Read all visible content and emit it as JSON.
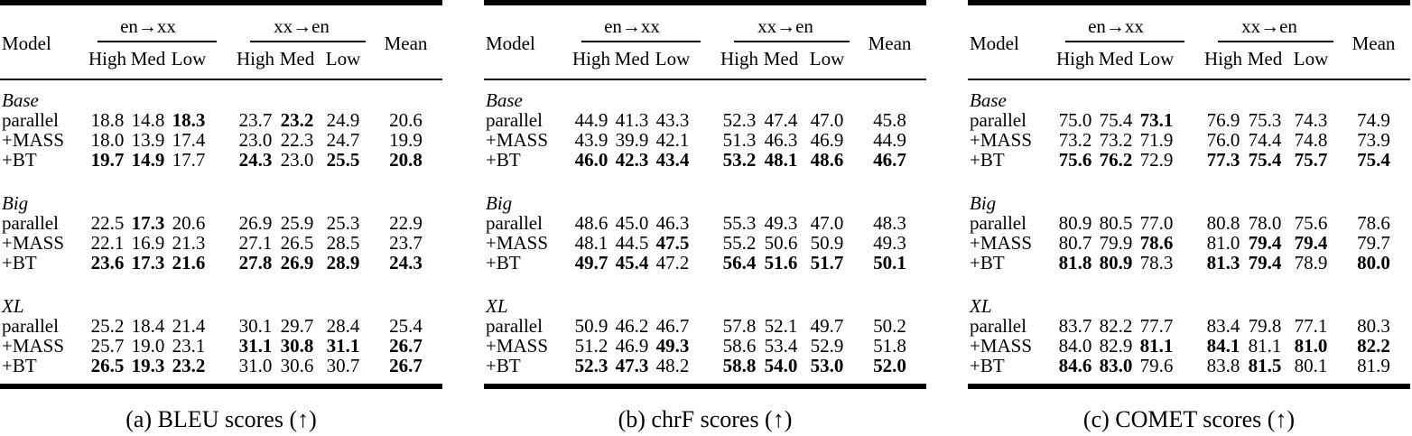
{
  "colors": {
    "background": "#ffffff",
    "text": "#000000",
    "rule": "#000000"
  },
  "header": {
    "model_label": "Model",
    "groups": [
      {
        "label": "en→xx",
        "columns": [
          "High",
          "Med",
          "Low"
        ]
      },
      {
        "label": "xx→en",
        "columns": [
          "High",
          "Med",
          "Low"
        ]
      }
    ],
    "mean_label": "Mean"
  },
  "tables": [
    {
      "id": "bleu",
      "caption": "(a) BLEU scores (↑)",
      "sections": [
        {
          "group": "Base",
          "rows": [
            {
              "label": "parallel",
              "values": [
                "18.8",
                "14.8",
                "18.3",
                "23.7",
                "23.2",
                "24.9",
                "20.6"
              ],
              "bold": [
                0,
                0,
                1,
                0,
                1,
                0,
                0
              ]
            },
            {
              "label": "+MASS",
              "values": [
                "18.0",
                "13.9",
                "17.4",
                "23.0",
                "22.3",
                "24.7",
                "19.9"
              ],
              "bold": [
                0,
                0,
                0,
                0,
                0,
                0,
                0
              ]
            },
            {
              "label": "+BT",
              "values": [
                "19.7",
                "14.9",
                "17.7",
                "24.3",
                "23.0",
                "25.5",
                "20.8"
              ],
              "bold": [
                1,
                1,
                0,
                1,
                0,
                1,
                1
              ]
            }
          ]
        },
        {
          "group": "Big",
          "rows": [
            {
              "label": "parallel",
              "values": [
                "22.5",
                "17.3",
                "20.6",
                "26.9",
                "25.9",
                "25.3",
                "22.9"
              ],
              "bold": [
                0,
                1,
                0,
                0,
                0,
                0,
                0
              ]
            },
            {
              "label": "+MASS",
              "values": [
                "22.1",
                "16.9",
                "21.3",
                "27.1",
                "26.5",
                "28.5",
                "23.7"
              ],
              "bold": [
                0,
                0,
                0,
                0,
                0,
                0,
                0
              ]
            },
            {
              "label": "+BT",
              "values": [
                "23.6",
                "17.3",
                "21.6",
                "27.8",
                "26.9",
                "28.9",
                "24.3"
              ],
              "bold": [
                1,
                1,
                1,
                1,
                1,
                1,
                1
              ]
            }
          ]
        },
        {
          "group": "XL",
          "rows": [
            {
              "label": "parallel",
              "values": [
                "25.2",
                "18.4",
                "21.4",
                "30.1",
                "29.7",
                "28.4",
                "25.4"
              ],
              "bold": [
                0,
                0,
                0,
                0,
                0,
                0,
                0
              ]
            },
            {
              "label": "+MASS",
              "values": [
                "25.7",
                "19.0",
                "23.1",
                "31.1",
                "30.8",
                "31.1",
                "26.7"
              ],
              "bold": [
                0,
                0,
                0,
                1,
                1,
                1,
                1
              ]
            },
            {
              "label": "+BT",
              "values": [
                "26.5",
                "19.3",
                "23.2",
                "31.0",
                "30.6",
                "30.7",
                "26.7"
              ],
              "bold": [
                1,
                1,
                1,
                0,
                0,
                0,
                1
              ]
            }
          ]
        }
      ]
    },
    {
      "id": "chrf",
      "caption": "(b) chrF scores (↑)",
      "sections": [
        {
          "group": "Base",
          "rows": [
            {
              "label": "parallel",
              "values": [
                "44.9",
                "41.3",
                "43.3",
                "52.3",
                "47.4",
                "47.0",
                "45.8"
              ],
              "bold": [
                0,
                0,
                0,
                0,
                0,
                0,
                0
              ]
            },
            {
              "label": "+MASS",
              "values": [
                "43.9",
                "39.9",
                "42.1",
                "51.3",
                "46.3",
                "46.9",
                "44.9"
              ],
              "bold": [
                0,
                0,
                0,
                0,
                0,
                0,
                0
              ]
            },
            {
              "label": "+BT",
              "values": [
                "46.0",
                "42.3",
                "43.4",
                "53.2",
                "48.1",
                "48.6",
                "46.7"
              ],
              "bold": [
                1,
                1,
                1,
                1,
                1,
                1,
                1
              ]
            }
          ]
        },
        {
          "group": "Big",
          "rows": [
            {
              "label": "parallel",
              "values": [
                "48.6",
                "45.0",
                "46.3",
                "55.3",
                "49.3",
                "47.0",
                "48.3"
              ],
              "bold": [
                0,
                0,
                0,
                0,
                0,
                0,
                0
              ]
            },
            {
              "label": "+MASS",
              "values": [
                "48.1",
                "44.5",
                "47.5",
                "55.2",
                "50.6",
                "50.9",
                "49.3"
              ],
              "bold": [
                0,
                0,
                1,
                0,
                0,
                0,
                0
              ]
            },
            {
              "label": "+BT",
              "values": [
                "49.7",
                "45.4",
                "47.2",
                "56.4",
                "51.6",
                "51.7",
                "50.1"
              ],
              "bold": [
                1,
                1,
                0,
                1,
                1,
                1,
                1
              ]
            }
          ]
        },
        {
          "group": "XL",
          "rows": [
            {
              "label": "parallel",
              "values": [
                "50.9",
                "46.2",
                "46.7",
                "57.8",
                "52.1",
                "49.7",
                "50.2"
              ],
              "bold": [
                0,
                0,
                0,
                0,
                0,
                0,
                0
              ]
            },
            {
              "label": "+MASS",
              "values": [
                "51.2",
                "46.9",
                "49.3",
                "58.6",
                "53.4",
                "52.9",
                "51.8"
              ],
              "bold": [
                0,
                0,
                1,
                0,
                0,
                0,
                0
              ]
            },
            {
              "label": "+BT",
              "values": [
                "52.3",
                "47.3",
                "48.2",
                "58.8",
                "54.0",
                "53.0",
                "52.0"
              ],
              "bold": [
                1,
                1,
                0,
                1,
                1,
                1,
                1
              ]
            }
          ]
        }
      ]
    },
    {
      "id": "comet",
      "caption": "(c) COMET scores (↑)",
      "sections": [
        {
          "group": "Base",
          "rows": [
            {
              "label": "parallel",
              "values": [
                "75.0",
                "75.4",
                "73.1",
                "76.9",
                "75.3",
                "74.3",
                "74.9"
              ],
              "bold": [
                0,
                0,
                1,
                0,
                0,
                0,
                0
              ]
            },
            {
              "label": "+MASS",
              "values": [
                "73.2",
                "73.2",
                "71.9",
                "76.0",
                "74.4",
                "74.8",
                "73.9"
              ],
              "bold": [
                0,
                0,
                0,
                0,
                0,
                0,
                0
              ]
            },
            {
              "label": "+BT",
              "values": [
                "75.6",
                "76.2",
                "72.9",
                "77.3",
                "75.4",
                "75.7",
                "75.4"
              ],
              "bold": [
                1,
                1,
                0,
                1,
                1,
                1,
                1
              ]
            }
          ]
        },
        {
          "group": "Big",
          "rows": [
            {
              "label": "parallel",
              "values": [
                "80.9",
                "80.5",
                "77.0",
                "80.8",
                "78.0",
                "75.6",
                "78.6"
              ],
              "bold": [
                0,
                0,
                0,
                0,
                0,
                0,
                0
              ]
            },
            {
              "label": "+MASS",
              "values": [
                "80.7",
                "79.9",
                "78.6",
                "81.0",
                "79.4",
                "79.4",
                "79.7"
              ],
              "bold": [
                0,
                0,
                1,
                0,
                1,
                1,
                0
              ]
            },
            {
              "label": "+BT",
              "values": [
                "81.8",
                "80.9",
                "78.3",
                "81.3",
                "79.4",
                "78.9",
                "80.0"
              ],
              "bold": [
                1,
                1,
                0,
                1,
                1,
                0,
                1
              ]
            }
          ]
        },
        {
          "group": "XL",
          "rows": [
            {
              "label": "parallel",
              "values": [
                "83.7",
                "82.2",
                "77.7",
                "83.4",
                "79.8",
                "77.1",
                "80.3"
              ],
              "bold": [
                0,
                0,
                0,
                0,
                0,
                0,
                0
              ]
            },
            {
              "label": "+MASS",
              "values": [
                "84.0",
                "82.9",
                "81.1",
                "84.1",
                "81.1",
                "81.0",
                "82.2"
              ],
              "bold": [
                0,
                0,
                1,
                1,
                0,
                1,
                1
              ]
            },
            {
              "label": "+BT",
              "values": [
                "84.6",
                "83.0",
                "79.6",
                "83.8",
                "81.5",
                "80.1",
                "81.9"
              ],
              "bold": [
                1,
                1,
                0,
                0,
                1,
                0,
                0
              ]
            }
          ]
        }
      ]
    }
  ]
}
